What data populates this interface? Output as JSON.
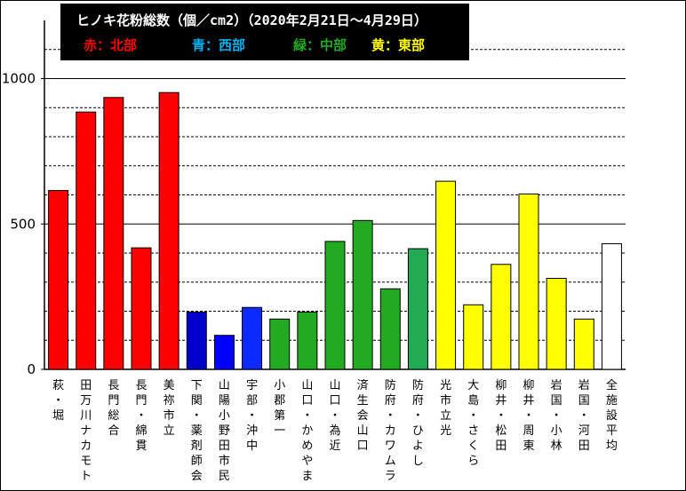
{
  "chart_data": {
    "type": "bar",
    "title": "ヒノキ花粉総数（個／cm2）（2020年2月21日～4月29日）",
    "legend": [
      {
        "label": "赤：北部",
        "color": "#ff0000"
      },
      {
        "label": "青：西部",
        "color": "#00b0f0"
      },
      {
        "label": "緑：中部",
        "color": "#22aa22"
      },
      {
        "label": "黄：東部",
        "color": "#ffff00"
      }
    ],
    "ylim": [
      0,
      1200
    ],
    "yticks": [
      "0",
      "500",
      "1000"
    ],
    "yticks_values": [
      0,
      500,
      1000
    ],
    "categories": [
      "萩・堀",
      "田万川ナカモト",
      "長門総合",
      "長門・綿貫",
      "美祢市立",
      "下関・薬剤師会",
      "山陽小野田市民",
      "宇部・沖中",
      "小郡第一",
      "山口・かめやま",
      "山口・為近",
      "済生会山口",
      "防府・カワムラ",
      "防府・ひよし",
      "光市立光",
      "大島・さくら",
      "柳井・松田",
      "柳井・周東",
      "岩国・小林",
      "岩国・河田",
      "全施設平均"
    ],
    "values": [
      615,
      885,
      935,
      418,
      952,
      197,
      117,
      213,
      173,
      197,
      440,
      512,
      277,
      415,
      647,
      222,
      361,
      603,
      313,
      173,
      432
    ],
    "colors": [
      "#ff0000",
      "#ff0000",
      "#ff0000",
      "#ff0000",
      "#ff0000",
      "#0000cc",
      "#0000ff",
      "#0a2aff",
      "#22aa22",
      "#22aa22",
      "#22aa22",
      "#22aa22",
      "#22aa22",
      "#22aa55",
      "#ffff00",
      "#ffff00",
      "#ffff00",
      "#ffff00",
      "#ffff00",
      "#ffff00",
      "#ffffff"
    ]
  }
}
